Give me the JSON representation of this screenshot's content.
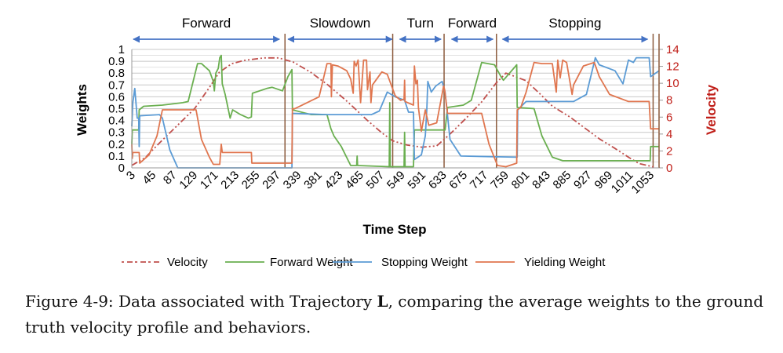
{
  "chart_data": {
    "type": "line",
    "xlabel": "Time Step",
    "ylabel": "Weights",
    "y2label": "Velocity",
    "xlim": [
      3,
      1070
    ],
    "ylim": [
      0,
      1
    ],
    "y2lim": [
      0,
      14
    ],
    "grid": true,
    "legend_placement": "bottom",
    "x_tick_labels": [
      "3",
      "45",
      "87",
      "129",
      "171",
      "213",
      "255",
      "297",
      "339",
      "381",
      "423",
      "465",
      "507",
      "549",
      "591",
      "633",
      "675",
      "717",
      "759",
      "801",
      "843",
      "885",
      "927",
      "969",
      "1011",
      "1053"
    ],
    "y_tick_labels": [
      "0",
      "0.1",
      "0.2",
      "0.3",
      "0.4",
      "0.5",
      "0.6",
      "0.7",
      "0.8",
      "0.9",
      "1"
    ],
    "y2_tick_labels": [
      "0",
      "2",
      "4",
      "6",
      "8",
      "10",
      "12",
      "14"
    ],
    "behaviors": [
      {
        "label": "Forward",
        "start": 3,
        "end": 305
      },
      {
        "label": "Slowdown",
        "start": 316,
        "end": 533
      },
      {
        "label": "Turn",
        "start": 542,
        "end": 632
      },
      {
        "label": "Forward",
        "start": 647,
        "end": 737
      },
      {
        "label": "Stopping",
        "start": 750,
        "end": 1050
      }
    ],
    "behavior_boundaries": [
      313,
      531,
      635,
      741,
      1058
    ],
    "series": [
      {
        "name": "Velocity",
        "axis": "right",
        "color": "#c0504d",
        "style": "dash-dot-dot",
        "points": [
          [
            3,
            0.3
          ],
          [
            30,
            1.2
          ],
          [
            60,
            3
          ],
          [
            95,
            5
          ],
          [
            130,
            7
          ],
          [
            160,
            9.5
          ],
          [
            180,
            11.3
          ],
          [
            205,
            12.3
          ],
          [
            230,
            12.7
          ],
          [
            270,
            13
          ],
          [
            300,
            13
          ],
          [
            330,
            12.5
          ],
          [
            365,
            11.3
          ],
          [
            400,
            9.8
          ],
          [
            440,
            7.8
          ],
          [
            480,
            5.6
          ],
          [
            510,
            4.1
          ],
          [
            531,
            3.2
          ],
          [
            560,
            2.7
          ],
          [
            590,
            2.45
          ],
          [
            620,
            2.6
          ],
          [
            647,
            4
          ],
          [
            680,
            5.9
          ],
          [
            711,
            7.8
          ],
          [
            740,
            10
          ],
          [
            760,
            11.2
          ],
          [
            801,
            10.3
          ],
          [
            830,
            8.7
          ],
          [
            854,
            7.3
          ],
          [
            890,
            6
          ],
          [
            920,
            4.7
          ],
          [
            950,
            3.4
          ],
          [
            981,
            2.3
          ],
          [
            1010,
            1.2
          ],
          [
            1030,
            0.5
          ],
          [
            1060,
            0.1
          ]
        ]
      },
      {
        "name": "Forward Weight",
        "axis": "left",
        "color": "#6aaf50",
        "style": "solid",
        "points": [
          [
            3,
            0.2
          ],
          [
            4,
            0.32
          ],
          [
            17,
            0.32
          ],
          [
            18,
            0.49
          ],
          [
            27,
            0.52
          ],
          [
            65,
            0.53
          ],
          [
            106,
            0.55
          ],
          [
            117,
            0.56
          ],
          [
            136,
            0.88
          ],
          [
            144,
            0.88
          ],
          [
            160,
            0.82
          ],
          [
            168,
            0.73
          ],
          [
            170,
            0.65
          ],
          [
            173,
            0.8
          ],
          [
            178,
            0.84
          ],
          [
            181,
            0.93
          ],
          [
            184,
            0.95
          ],
          [
            186,
            0.71
          ],
          [
            192,
            0.62
          ],
          [
            202,
            0.42
          ],
          [
            207,
            0.49
          ],
          [
            223,
            0.45
          ],
          [
            239,
            0.42
          ],
          [
            245,
            0.43
          ],
          [
            247,
            0.63
          ],
          [
            276,
            0.67
          ],
          [
            287,
            0.68
          ],
          [
            308,
            0.65
          ],
          [
            319,
            0.77
          ],
          [
            327,
            0.83
          ],
          [
            328,
            0.49
          ],
          [
            366,
            0.45
          ],
          [
            398,
            0.45
          ],
          [
            406,
            0.33
          ],
          [
            412,
            0.27
          ],
          [
            427,
            0.18
          ],
          [
            446,
            0.02
          ],
          [
            458,
            0.02
          ],
          [
            459,
            0.1
          ],
          [
            460,
            0.02
          ],
          [
            524,
            0.01
          ],
          [
            525,
            0.55
          ],
          [
            526,
            0.01
          ],
          [
            554,
            0.01
          ],
          [
            555,
            0.3
          ],
          [
            556,
            0.01
          ],
          [
            573,
            0.01
          ],
          [
            575,
            0.32
          ],
          [
            637,
            0.32
          ],
          [
            642,
            0.51
          ],
          [
            674,
            0.53
          ],
          [
            690,
            0.57
          ],
          [
            711,
            0.89
          ],
          [
            737,
            0.87
          ],
          [
            750,
            0.77
          ],
          [
            755,
            0.74
          ],
          [
            782,
            0.87
          ],
          [
            783,
            0.51
          ],
          [
            817,
            0.5
          ],
          [
            833,
            0.27
          ],
          [
            854,
            0.09
          ],
          [
            875,
            0.06
          ],
          [
            1052,
            0.06
          ],
          [
            1053,
            0.18
          ],
          [
            1070,
            0.18
          ]
        ]
      },
      {
        "name": "Stopping Weight",
        "axis": "left",
        "color": "#5b9bd5",
        "style": "solid",
        "points": [
          [
            3,
            0.35
          ],
          [
            5,
            0.55
          ],
          [
            9,
            0.67
          ],
          [
            14,
            0.42
          ],
          [
            17,
            0.42
          ],
          [
            18,
            0.18
          ],
          [
            19,
            0.44
          ],
          [
            59,
            0.45
          ],
          [
            65,
            0.42
          ],
          [
            80,
            0.15
          ],
          [
            96,
            0.0
          ],
          [
            327,
            0.0
          ],
          [
            328,
            0.46
          ],
          [
            398,
            0.45
          ],
          [
            488,
            0.45
          ],
          [
            504,
            0.48
          ],
          [
            520,
            0.64
          ],
          [
            536,
            0.6
          ],
          [
            555,
            0.57
          ],
          [
            563,
            0.47
          ],
          [
            573,
            0.47
          ],
          [
            575,
            0.07
          ],
          [
            589,
            0.11
          ],
          [
            597,
            0.27
          ],
          [
            600,
            0.49
          ],
          [
            602,
            0.73
          ],
          [
            609,
            0.64
          ],
          [
            618,
            0.69
          ],
          [
            631,
            0.73
          ],
          [
            637,
            0.64
          ],
          [
            647,
            0.24
          ],
          [
            669,
            0.1
          ],
          [
            783,
            0.09
          ],
          [
            784,
            0.49
          ],
          [
            801,
            0.56
          ],
          [
            897,
            0.56
          ],
          [
            923,
            0.62
          ],
          [
            941,
            0.93
          ],
          [
            949,
            0.87
          ],
          [
            981,
            0.82
          ],
          [
            997,
            0.71
          ],
          [
            1008,
            0.91
          ],
          [
            1018,
            0.89
          ],
          [
            1024,
            0.93
          ],
          [
            1050,
            0.93
          ],
          [
            1053,
            0.77
          ],
          [
            1070,
            0.82
          ]
        ]
      },
      {
        "name": "Yielding Weight",
        "axis": "left",
        "color": "#e0764f",
        "style": "solid",
        "points": [
          [
            3,
            0.2
          ],
          [
            4,
            0.08
          ],
          [
            5,
            0.13
          ],
          [
            18,
            0.13
          ],
          [
            19,
            0.04
          ],
          [
            38,
            0.11
          ],
          [
            54,
            0.27
          ],
          [
            65,
            0.49
          ],
          [
            133,
            0.49
          ],
          [
            144,
            0.24
          ],
          [
            160,
            0.09
          ],
          [
            168,
            0.03
          ],
          [
            181,
            0.03
          ],
          [
            184,
            0.2
          ],
          [
            186,
            0.13
          ],
          [
            245,
            0.13
          ],
          [
            246,
            0.04
          ],
          [
            327,
            0.04
          ],
          [
            328,
            0.5
          ],
          [
            333,
            0.5
          ],
          [
            382,
            0.6
          ],
          [
            398,
            0.88
          ],
          [
            406,
            0.88
          ],
          [
            407,
            0.6
          ],
          [
            409,
            0.87
          ],
          [
            420,
            0.86
          ],
          [
            438,
            0.82
          ],
          [
            446,
            0.75
          ],
          [
            451,
            0.63
          ],
          [
            453,
            0.9
          ],
          [
            457,
            0.86
          ],
          [
            461,
            0.91
          ],
          [
            466,
            0.55
          ],
          [
            472,
            0.91
          ],
          [
            478,
            0.91
          ],
          [
            480,
            0.66
          ],
          [
            485,
            0.81
          ],
          [
            487,
            0.55
          ],
          [
            490,
            0.7
          ],
          [
            509,
            0.81
          ],
          [
            520,
            0.79
          ],
          [
            536,
            0.61
          ],
          [
            547,
            0.57
          ],
          [
            554,
            0.58
          ],
          [
            555,
            0.74
          ],
          [
            556,
            0.56
          ],
          [
            573,
            0.53
          ],
          [
            575,
            0.86
          ],
          [
            578,
            0.71
          ],
          [
            581,
            0.74
          ],
          [
            583,
            0.51
          ],
          [
            589,
            0.31
          ],
          [
            597,
            0.49
          ],
          [
            604,
            0.36
          ],
          [
            620,
            0.38
          ],
          [
            634,
            0.69
          ],
          [
            636,
            0.66
          ],
          [
            642,
            0.46
          ],
          [
            711,
            0.46
          ],
          [
            726,
            0.2
          ],
          [
            743,
            0.02
          ],
          [
            760,
            0.01
          ],
          [
            782,
            0.04
          ],
          [
            783,
            0.49
          ],
          [
            790,
            0.51
          ],
          [
            801,
            0.64
          ],
          [
            817,
            0.89
          ],
          [
            833,
            0.88
          ],
          [
            854,
            0.88
          ],
          [
            862,
            0.64
          ],
          [
            865,
            0.91
          ],
          [
            870,
            0.76
          ],
          [
            875,
            0.91
          ],
          [
            883,
            0.89
          ],
          [
            894,
            0.62
          ],
          [
            897,
            0.7
          ],
          [
            917,
            0.86
          ],
          [
            939,
            0.89
          ],
          [
            949,
            0.77
          ],
          [
            970,
            0.62
          ],
          [
            1008,
            0.56
          ],
          [
            1050,
            0.56
          ],
          [
            1053,
            0.33
          ],
          [
            1070,
            0.33
          ]
        ]
      }
    ]
  },
  "caption": {
    "prefix": "Figure 4-9: Data associated with Trajectory ",
    "bold": "L",
    "suffix": ", comparing the average weights to the ground truth velocity profile and behaviors."
  }
}
